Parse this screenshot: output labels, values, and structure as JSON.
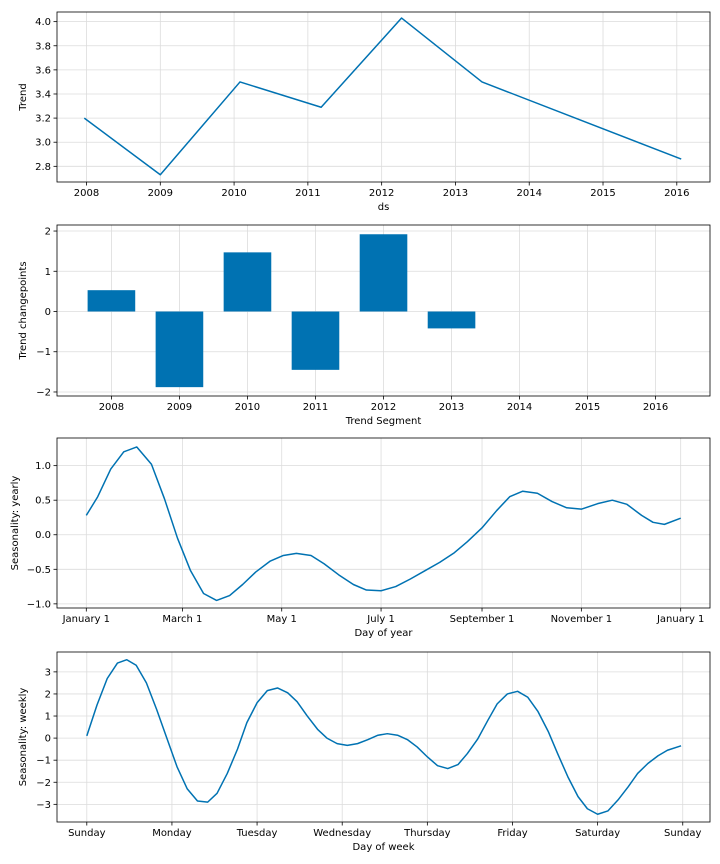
{
  "chart_data": [
    {
      "type": "line",
      "xlabel": "ds",
      "ylabel": "Trend",
      "x_ticks": [
        2008,
        2009,
        2010,
        2011,
        2012,
        2013,
        2014,
        2015,
        2016
      ],
      "xlim": [
        2007.6,
        2016.45
      ],
      "ylim": [
        2.67,
        4.08
      ],
      "y_ticks": [
        2.8,
        3.0,
        3.2,
        3.4,
        3.6,
        3.8,
        4.0
      ],
      "y_tick_labels": [
        "2.8",
        "3.0",
        "3.2",
        "3.4",
        "3.6",
        "3.8",
        "4.0"
      ],
      "grid": true,
      "color": "#0072B2",
      "x": [
        2007.97,
        2009.0,
        2010.08,
        2011.18,
        2012.27,
        2013.36,
        2016.06
      ],
      "y": [
        3.2,
        2.73,
        3.5,
        3.29,
        4.03,
        3.5,
        2.86
      ]
    },
    {
      "type": "bar",
      "xlabel": "Trend Segment",
      "ylabel": "Trend changepoints",
      "categories": [
        "2008",
        "2009",
        "2010",
        "2011",
        "2012",
        "2013",
        "2014",
        "2015",
        "2016"
      ],
      "values": [
        0.53,
        -1.88,
        1.47,
        -1.45,
        1.92,
        -0.42,
        null,
        null,
        null
      ],
      "xlim": [
        -0.8,
        8.8
      ],
      "ylim": [
        -2.1,
        2.15
      ],
      "y_ticks": [
        -2,
        -1,
        0,
        1,
        2
      ],
      "y_tick_labels": [
        "−2",
        "−1",
        "0",
        "1",
        "2"
      ],
      "grid": true,
      "color": "#0072B2"
    },
    {
      "type": "line",
      "xlabel": "Day of year",
      "ylabel": "Seasonality: yearly",
      "x_ticks": [
        0,
        59,
        120,
        181,
        243,
        304,
        365
      ],
      "x_tick_labels": [
        "January 1",
        "March 1",
        "May 1",
        "July 1",
        "September 1",
        "November 1",
        "January 1"
      ],
      "xlim": [
        -18,
        383
      ],
      "ylim": [
        -1.06,
        1.4
      ],
      "y_ticks": [
        -1.0,
        -0.5,
        0.0,
        0.5,
        1.0
      ],
      "y_tick_labels": [
        "−1.0",
        "−0.5",
        "0.0",
        "0.5",
        "1.0"
      ],
      "grid": true,
      "color": "#0072B2",
      "x": [
        0,
        7,
        15,
        23,
        31,
        40,
        48,
        56,
        64,
        72,
        80,
        88,
        96,
        104,
        113,
        121,
        129,
        138,
        146,
        155,
        164,
        172,
        181,
        190,
        199,
        208,
        217,
        226,
        234,
        243,
        252,
        260,
        268,
        277,
        286,
        295,
        304,
        314,
        323,
        332,
        341,
        348,
        355,
        365
      ],
      "y": [
        0.28,
        0.55,
        0.95,
        1.2,
        1.27,
        1.02,
        0.52,
        -0.05,
        -0.52,
        -0.85,
        -0.95,
        -0.88,
        -0.72,
        -0.54,
        -0.38,
        -0.3,
        -0.27,
        -0.3,
        -0.42,
        -0.58,
        -0.72,
        -0.8,
        -0.81,
        -0.75,
        -0.64,
        -0.52,
        -0.4,
        -0.26,
        -0.1,
        0.1,
        0.35,
        0.55,
        0.63,
        0.6,
        0.48,
        0.39,
        0.37,
        0.45,
        0.5,
        0.44,
        0.28,
        0.18,
        0.15,
        0.24
      ]
    },
    {
      "type": "line",
      "xlabel": "Day of week",
      "ylabel": "Seasonality: weekly",
      "x_ticks": [
        0,
        1,
        2,
        3,
        4,
        5,
        6,
        7
      ],
      "x_tick_labels": [
        "Sunday",
        "Monday",
        "Tuesday",
        "Wednesday",
        "Thursday",
        "Friday",
        "Saturday",
        "Sunday"
      ],
      "xlim": [
        -0.35,
        7.32
      ],
      "ylim": [
        -3.8,
        3.9
      ],
      "y_ticks": [
        -3,
        -2,
        -1,
        0,
        1,
        2,
        3
      ],
      "y_tick_labels": [
        "−3",
        "−2",
        "−1",
        "0",
        "1",
        "2",
        "3"
      ],
      "grid": true,
      "color": "#0072B2",
      "x": [
        0.0,
        0.12,
        0.24,
        0.36,
        0.47,
        0.58,
        0.7,
        0.82,
        0.94,
        1.06,
        1.18,
        1.3,
        1.42,
        1.53,
        1.65,
        1.77,
        1.88,
        2.0,
        2.12,
        2.24,
        2.36,
        2.47,
        2.59,
        2.71,
        2.82,
        2.94,
        3.06,
        3.18,
        3.3,
        3.42,
        3.53,
        3.65,
        3.77,
        3.88,
        4.0,
        4.12,
        4.24,
        4.36,
        4.47,
        4.59,
        4.71,
        4.82,
        4.94,
        5.06,
        5.18,
        5.3,
        5.42,
        5.53,
        5.65,
        5.77,
        5.88,
        6.0,
        6.12,
        6.24,
        6.36,
        6.47,
        6.59,
        6.71,
        6.82,
        6.98
      ],
      "y": [
        0.1,
        1.5,
        2.7,
        3.4,
        3.55,
        3.3,
        2.5,
        1.3,
        0.0,
        -1.3,
        -2.3,
        -2.85,
        -2.9,
        -2.5,
        -1.6,
        -0.5,
        0.7,
        1.6,
        2.15,
        2.27,
        2.05,
        1.65,
        1.0,
        0.4,
        0.0,
        -0.25,
        -0.33,
        -0.25,
        -0.07,
        0.13,
        0.2,
        0.13,
        -0.08,
        -0.4,
        -0.85,
        -1.25,
        -1.38,
        -1.2,
        -0.7,
        -0.05,
        0.8,
        1.55,
        2.0,
        2.12,
        1.85,
        1.2,
        0.3,
        -0.7,
        -1.75,
        -2.65,
        -3.2,
        -3.45,
        -3.3,
        -2.8,
        -2.2,
        -1.6,
        -1.15,
        -0.8,
        -0.55,
        -0.35
      ]
    }
  ]
}
